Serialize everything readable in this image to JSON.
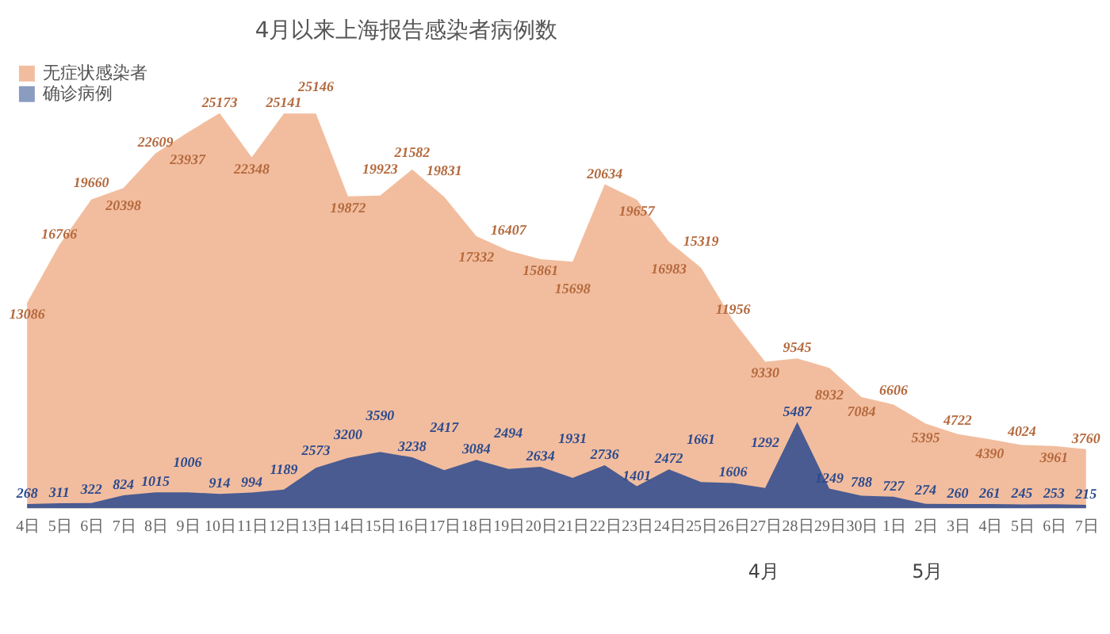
{
  "chart_data": {
    "type": "area",
    "title": "4月以来上海报告感染者病例数",
    "categories": [
      "4日",
      "5日",
      "6日",
      "7日",
      "8日",
      "9日",
      "10日",
      "11日",
      "12日",
      "13日",
      "14日",
      "15日",
      "16日",
      "17日",
      "18日",
      "19日",
      "20日",
      "21日",
      "22日",
      "23日",
      "24日",
      "25日",
      "26日",
      "27日",
      "28日",
      "29日",
      "30日",
      "1日",
      "2日",
      "3日",
      "4日",
      "5日",
      "6日",
      "7日"
    ],
    "series": [
      {
        "name": "无症状感染者",
        "color": "#e8874f",
        "values": [
          13086,
          16766,
          19660,
          20398,
          22609,
          23937,
          25173,
          22348,
          25141,
          25146,
          19872,
          19923,
          21582,
          19831,
          17332,
          16407,
          15861,
          15698,
          20634,
          19657,
          16983,
          15319,
          11956,
          9330,
          9545,
          8932,
          7084,
          6606,
          5395,
          4722,
          4390,
          4024,
          3961,
          3760
        ]
      },
      {
        "name": "确诊病例",
        "color": "#2b4a8e",
        "values": [
          268,
          311,
          322,
          824,
          1015,
          1006,
          914,
          994,
          1189,
          2573,
          3200,
          3590,
          3238,
          2417,
          3084,
          2494,
          2634,
          1931,
          2736,
          1401,
          2472,
          1661,
          1606,
          1292,
          5487,
          1249,
          788,
          727,
          274,
          260,
          261,
          245,
          253,
          215
        ]
      }
    ],
    "data_labels": true,
    "legend": "top left",
    "annotations": [
      "4月",
      "5月"
    ]
  }
}
